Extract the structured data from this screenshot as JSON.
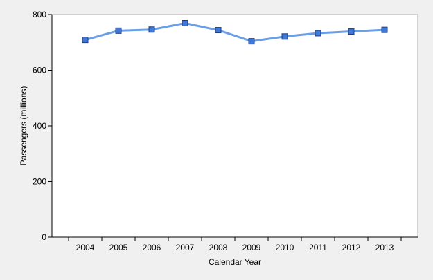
{
  "chart_data": {
    "type": "line",
    "title": "",
    "xlabel": "Calendar Year",
    "ylabel": "Passengers (millions)",
    "categories": [
      "2004",
      "2005",
      "2006",
      "2007",
      "2008",
      "2009",
      "2010",
      "2011",
      "2012",
      "2013"
    ],
    "series": [
      {
        "values": [
          709,
          742,
          746,
          769,
          744,
          704,
          721,
          733,
          739,
          745
        ],
        "color": "#6a9fe8",
        "marker": "square",
        "marker_color": "#3f78d8"
      }
    ],
    "ylim": [
      0,
      800
    ],
    "yticks": [
      0,
      200,
      400,
      600,
      800
    ],
    "grid": false,
    "legend": "none"
  }
}
